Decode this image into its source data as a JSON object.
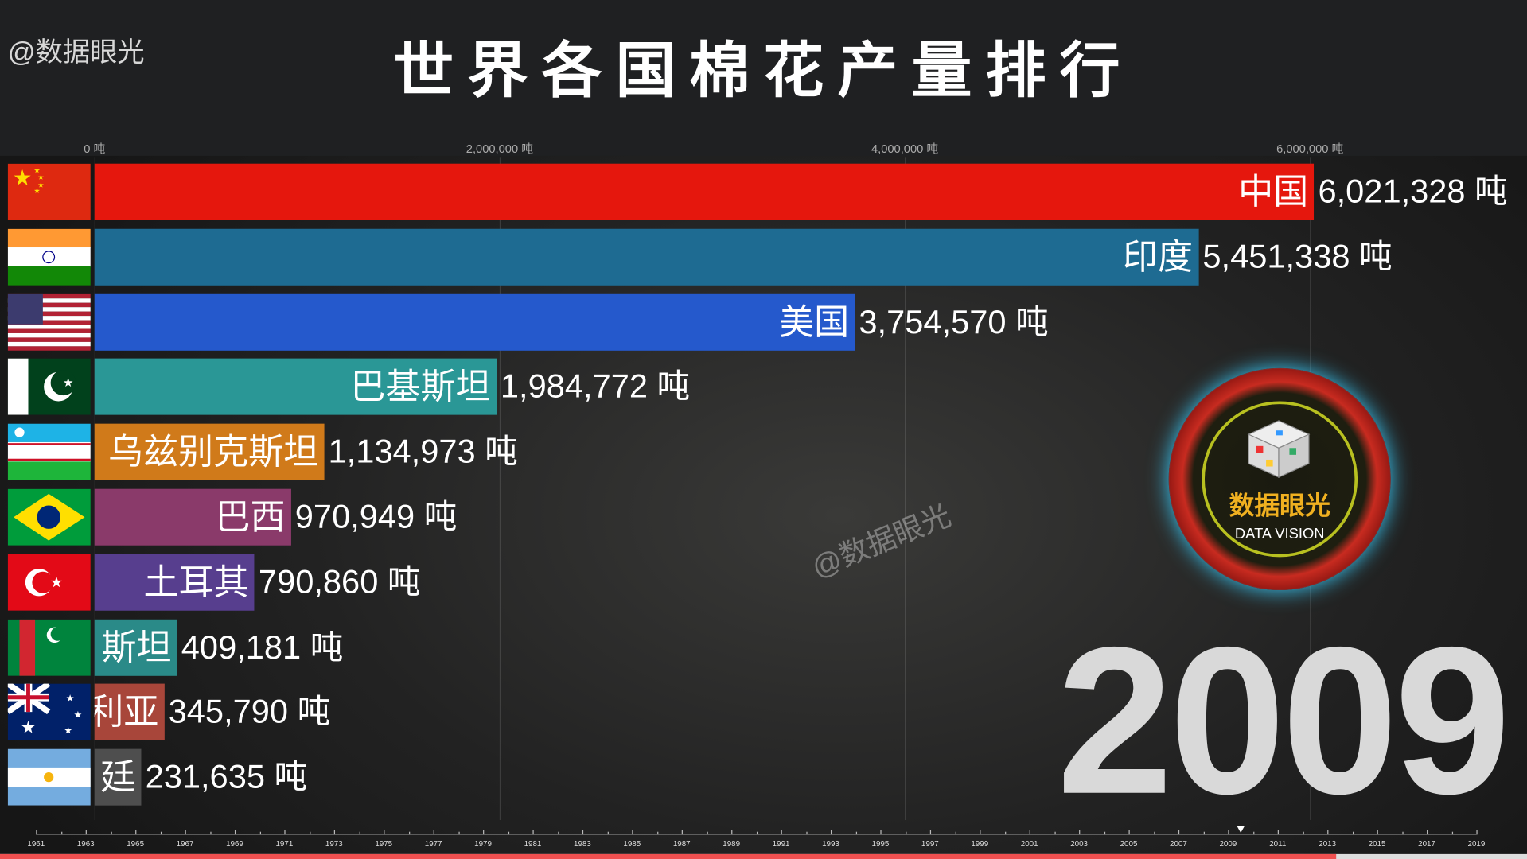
{
  "handle": "@数据眼光",
  "title": "世界各国棉花产量排行",
  "axis": {
    "ticks": [
      {
        "value": 0,
        "label": "0 吨"
      },
      {
        "value": 2000000,
        "label": "2,000,000 吨"
      },
      {
        "value": 4000000,
        "label": "4,000,000 吨"
      },
      {
        "value": 6000000,
        "label": "6,000,000 吨"
      }
    ]
  },
  "chart_data": {
    "type": "bar",
    "orientation": "horizontal",
    "year": "2009",
    "unit": "吨",
    "categories": [
      "中国",
      "印度",
      "美国",
      "巴基斯坦",
      "乌兹别克斯坦",
      "巴西",
      "土耳其",
      "斯坦",
      "利亚",
      "廷"
    ],
    "values": [
      6021328,
      5451338,
      3754570,
      1984772,
      1134973,
      970949,
      790860,
      409181,
      345790,
      231635
    ],
    "value_labels": [
      "6,021,328 吨",
      "5,451,338 吨",
      "3,754,570 吨",
      "1,984,772 吨",
      "1,134,973 吨",
      "970,949 吨",
      "790,860 吨",
      "409,181 吨",
      "345,790 吨",
      "231,635 吨"
    ],
    "colors": [
      "#e5170d",
      "#1e6b92",
      "#2559cc",
      "#2a9796",
      "#d07a1a",
      "#8a3a6a",
      "#573e8e",
      "#2a8a88",
      "#a8463a",
      "#4e4e4e"
    ],
    "flags": [
      "china",
      "india",
      "usa",
      "pakistan",
      "uzbekistan",
      "brazil",
      "turkey",
      "turkmenistan",
      "australia",
      "argentina"
    ],
    "xlim": [
      0,
      6000000
    ],
    "grid": true
  },
  "watermark": "@数据眼光",
  "year_display": "2009",
  "logo": {
    "cn": "数据眼光",
    "en": "DATA VISION"
  },
  "timeline": {
    "years": [
      "1961",
      "1963",
      "1965",
      "1967",
      "1969",
      "1971",
      "1973",
      "1975",
      "1977",
      "1979",
      "1981",
      "1983",
      "1985",
      "1987",
      "1989",
      "1991",
      "1993",
      "1995",
      "1997",
      "1999",
      "2001",
      "2003",
      "2005",
      "2007",
      "2009",
      "2011",
      "2013",
      "2015",
      "2017",
      "2019"
    ],
    "current": 2009.5
  },
  "video_progress": 0.875
}
